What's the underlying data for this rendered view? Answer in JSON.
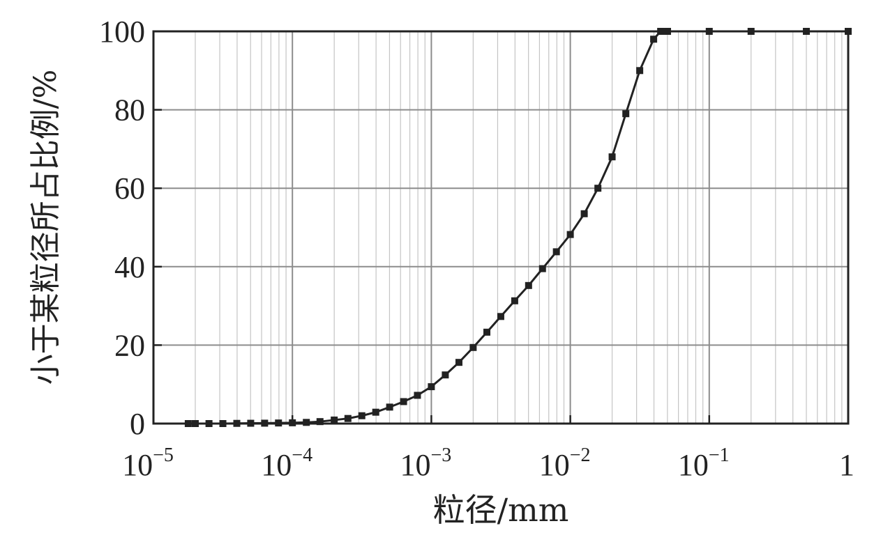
{
  "chart_data": {
    "type": "line",
    "x_scale": "log",
    "grid": true,
    "xlabel": "粒径/mm",
    "ylabel": "小于某粒径所占比例/%",
    "xlim": [
      1e-05,
      1
    ],
    "ylim": [
      0,
      100
    ],
    "x_ticks": [
      {
        "value": 1e-05,
        "base": "10",
        "exp": "−5"
      },
      {
        "value": 0.0001,
        "base": "10",
        "exp": "−4"
      },
      {
        "value": 0.001,
        "base": "10",
        "exp": "−3"
      },
      {
        "value": 0.01,
        "base": "10",
        "exp": "−2"
      },
      {
        "value": 0.1,
        "base": "10",
        "exp": "−1"
      },
      {
        "value": 1,
        "base": "1",
        "exp": ""
      }
    ],
    "y_ticks": [
      "0",
      "20",
      "40",
      "60",
      "80",
      "100"
    ],
    "series": [
      {
        "marker": "square",
        "color": "#222222",
        "points": [
          [
            1.78e-05,
            0.0
          ],
          [
            2e-05,
            0.0
          ],
          [
            2.51e-05,
            0.0
          ],
          [
            3.16e-05,
            0.0
          ],
          [
            3.98e-05,
            0.05
          ],
          [
            5.01e-05,
            0.08
          ],
          [
            6.31e-05,
            0.1
          ],
          [
            7.94e-05,
            0.15
          ],
          [
            0.0001,
            0.2
          ],
          [
            0.000126,
            0.3
          ],
          [
            0.000158,
            0.5
          ],
          [
            0.0002,
            0.9
          ],
          [
            0.000251,
            1.3
          ],
          [
            0.000316,
            2.0
          ],
          [
            0.000398,
            2.9
          ],
          [
            0.000501,
            4.2
          ],
          [
            0.000631,
            5.6
          ],
          [
            0.000794,
            7.2
          ],
          [
            0.001,
            9.4
          ],
          [
            0.00126,
            12.4
          ],
          [
            0.00158,
            15.6
          ],
          [
            0.002,
            19.4
          ],
          [
            0.00251,
            23.3
          ],
          [
            0.00316,
            27.3
          ],
          [
            0.00398,
            31.3
          ],
          [
            0.00501,
            35.2
          ],
          [
            0.00631,
            39.5
          ],
          [
            0.00794,
            43.8
          ],
          [
            0.01,
            48.2
          ],
          [
            0.0126,
            53.5
          ],
          [
            0.0158,
            60.0
          ],
          [
            0.02,
            68.0
          ],
          [
            0.0251,
            79.0
          ],
          [
            0.0316,
            90.0
          ],
          [
            0.0398,
            98.0
          ],
          [
            0.0447,
            100.0
          ],
          [
            0.0501,
            100.0
          ],
          [
            0.1,
            100.0
          ],
          [
            0.2,
            100.0
          ],
          [
            0.5,
            100.0
          ],
          [
            1,
            100.0
          ]
        ]
      }
    ]
  }
}
